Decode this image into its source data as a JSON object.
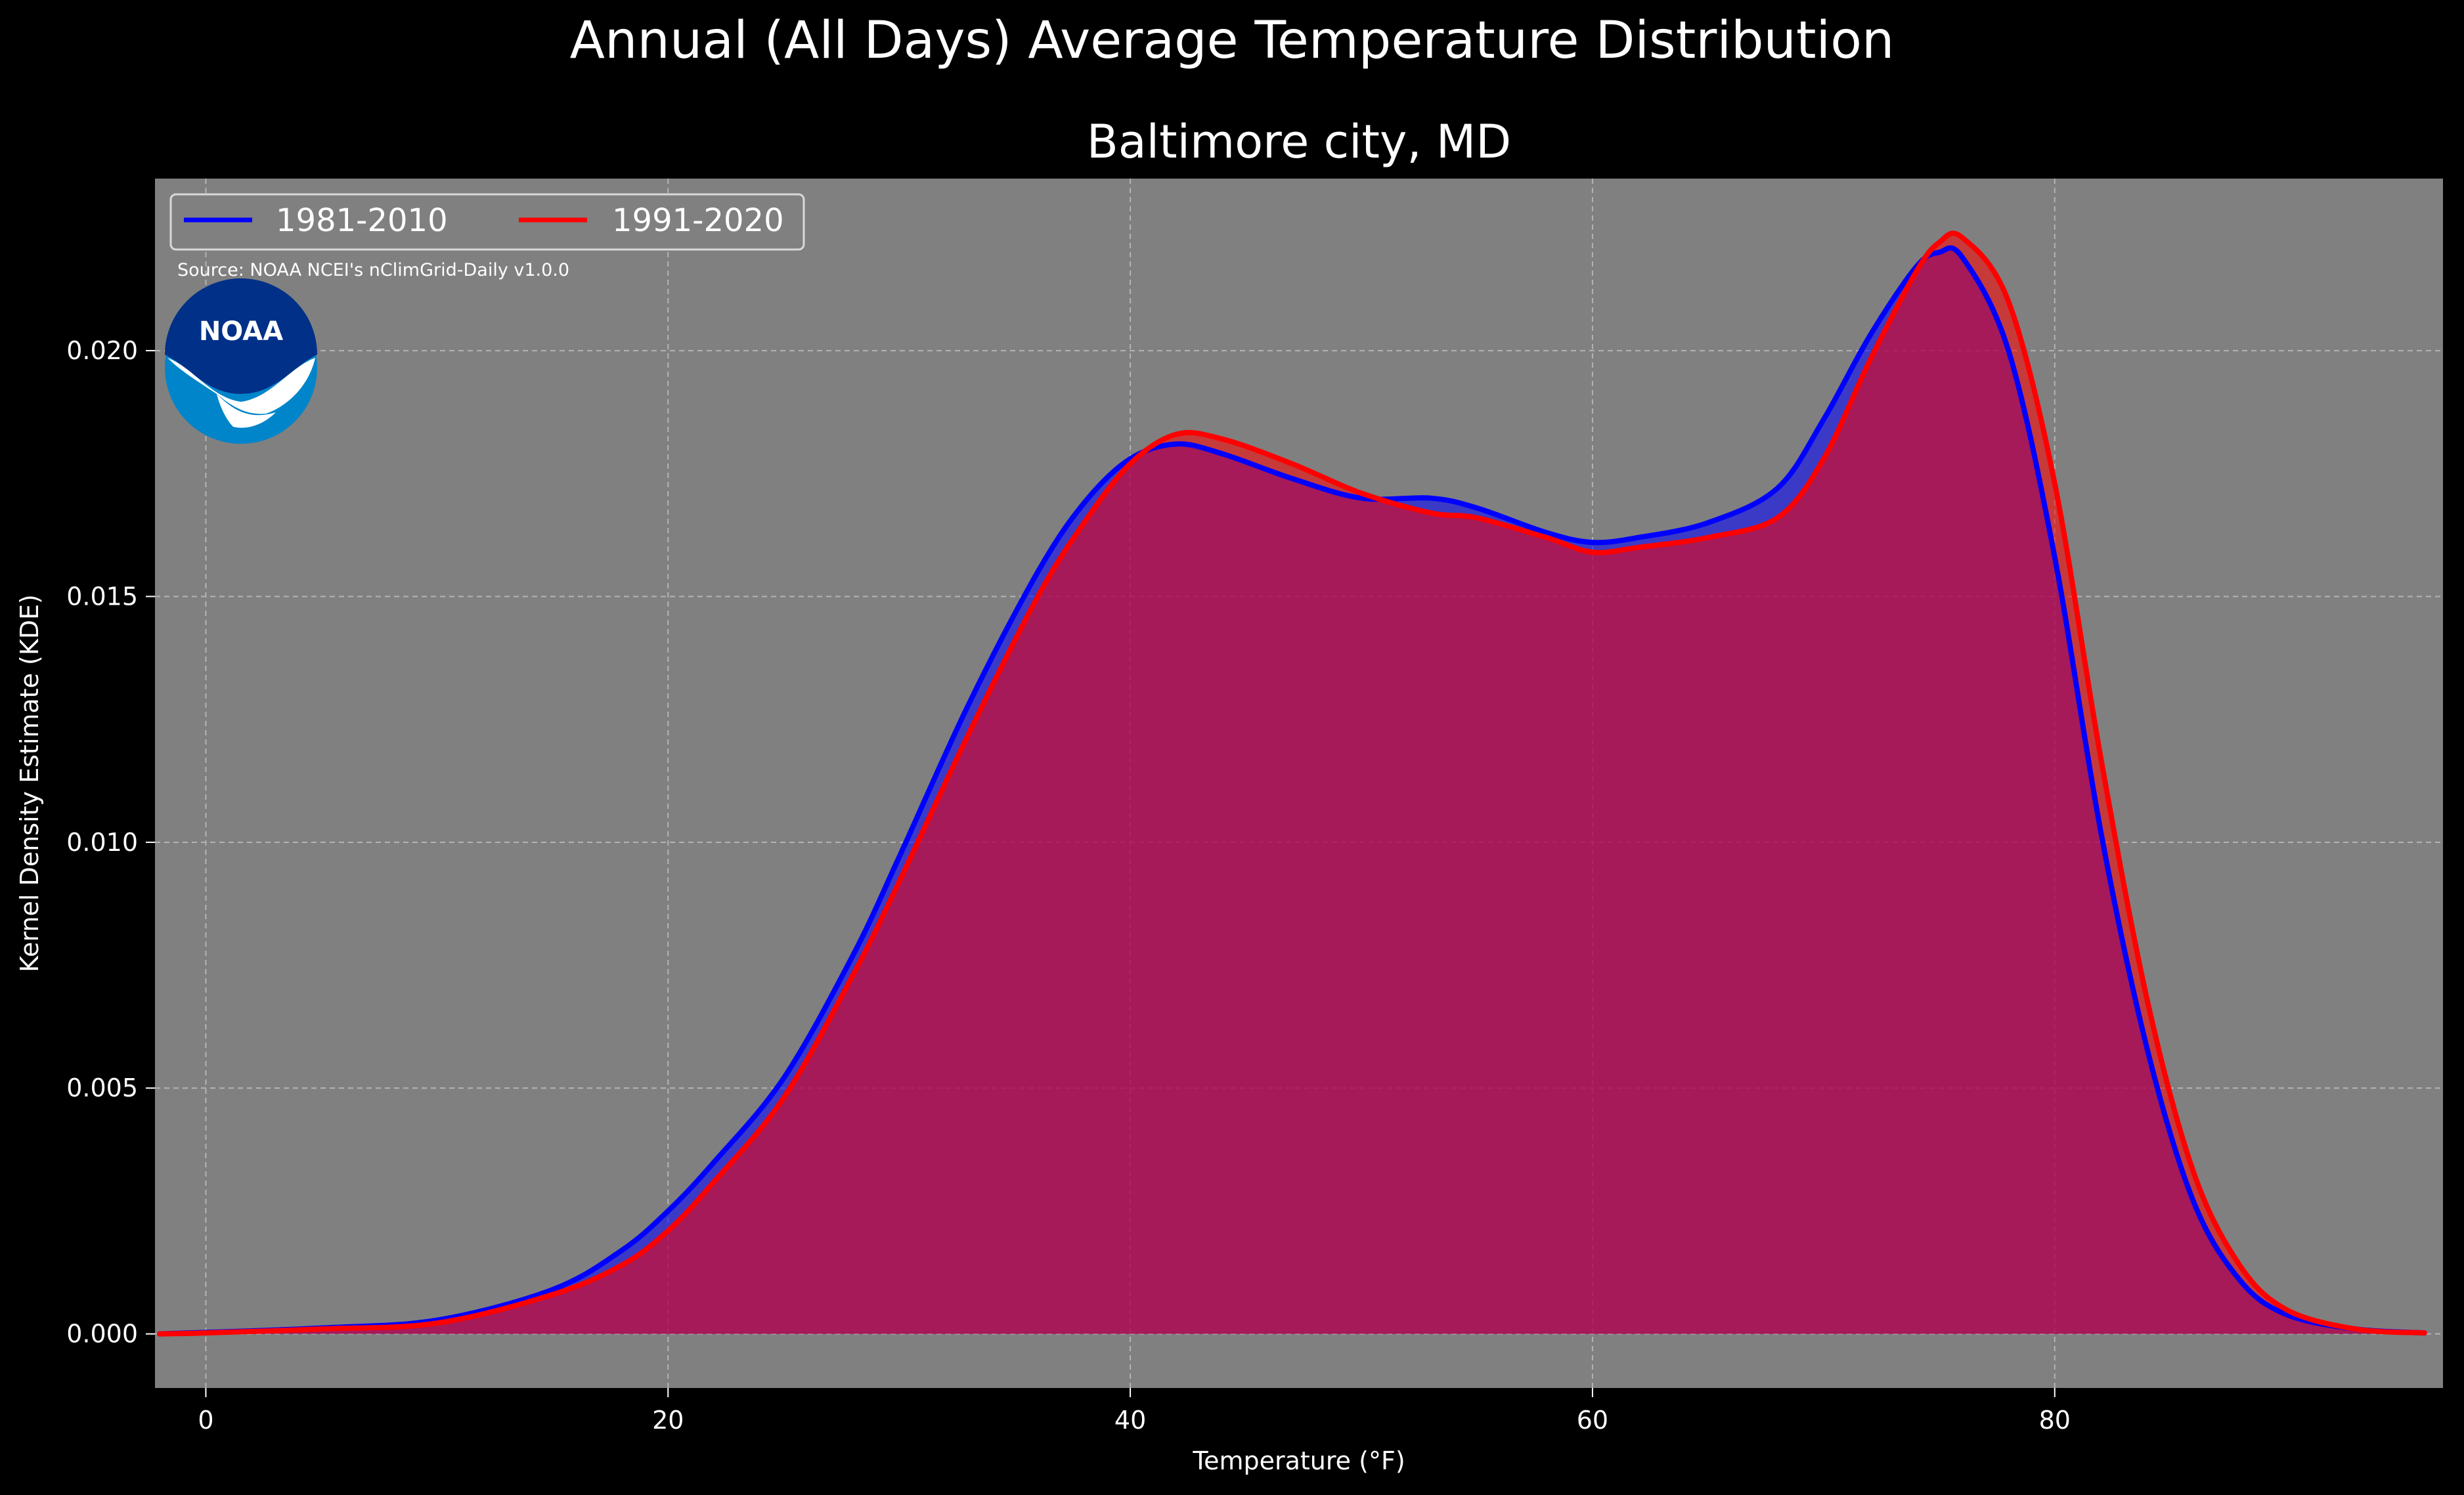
{
  "figure": {
    "suptitle": "Annual (All Days) Average Temperature Distribution",
    "source_note": "Source: NOAA NCEI's nClimGrid-Daily v1.0.0",
    "logo_text": "NOAA"
  },
  "colors": {
    "background": "#000000",
    "plot_background": "#808080",
    "grid": "#b4b4b4",
    "series_1": "#0000ff",
    "series_2": "#ff0000",
    "fill_overlap": "#9e1f5e",
    "text": "#ffffff"
  },
  "chart_data": {
    "type": "area",
    "title": "Baltimore city, MD",
    "xlabel": "Temperature (°F)",
    "ylabel": "Kernel Density Estimate (KDE)",
    "xlim": [
      -2.2,
      96.8
    ],
    "ylim": [
      -0.0011,
      0.0235
    ],
    "xticks": [
      0,
      20,
      40,
      60,
      80
    ],
    "yticks": [
      0.0,
      0.005,
      0.01,
      0.015,
      0.02
    ],
    "xtick_labels": [
      "0",
      "20",
      "40",
      "60",
      "80"
    ],
    "ytick_labels": [
      "0.000",
      "0.005",
      "0.010",
      "0.015",
      "0.020"
    ],
    "grid": true,
    "legend": {
      "placement": "top-left",
      "columns": 2
    },
    "x": [
      -2,
      0,
      5,
      10,
      15,
      18,
      20,
      22,
      25,
      28,
      30,
      33,
      36,
      38,
      40,
      42,
      44,
      47,
      50,
      53,
      55,
      58,
      60,
      62,
      65,
      68,
      70,
      72,
      74,
      75,
      76,
      78,
      80,
      82,
      84,
      86,
      88,
      90,
      93,
      96
    ],
    "series": [
      {
        "name": "1981-2010",
        "values": [
          0.0,
          3e-05,
          0.00012,
          0.00028,
          0.0009,
          0.0017,
          0.0025,
          0.0035,
          0.0052,
          0.0077,
          0.0097,
          0.0128,
          0.0155,
          0.0169,
          0.0178,
          0.0181,
          0.0179,
          0.0174,
          0.017,
          0.017,
          0.0168,
          0.0163,
          0.0161,
          0.0162,
          0.0165,
          0.0172,
          0.0186,
          0.0203,
          0.0217,
          0.022,
          0.0219,
          0.02,
          0.0158,
          0.0102,
          0.0058,
          0.0027,
          0.0011,
          0.0004,
          0.0001,
          2e-05
        ]
      },
      {
        "name": "1991-2020",
        "values": [
          0.0,
          2e-05,
          0.0001,
          0.00022,
          0.0008,
          0.0014,
          0.0021,
          0.0031,
          0.0048,
          0.0073,
          0.0092,
          0.0122,
          0.015,
          0.0165,
          0.0177,
          0.0183,
          0.0182,
          0.0177,
          0.0171,
          0.0167,
          0.0166,
          0.0162,
          0.0159,
          0.016,
          0.0162,
          0.0166,
          0.0178,
          0.0198,
          0.0216,
          0.0222,
          0.0223,
          0.021,
          0.0173,
          0.0117,
          0.0068,
          0.0033,
          0.0014,
          0.0005,
          0.0001,
          2e-05
        ]
      }
    ]
  }
}
